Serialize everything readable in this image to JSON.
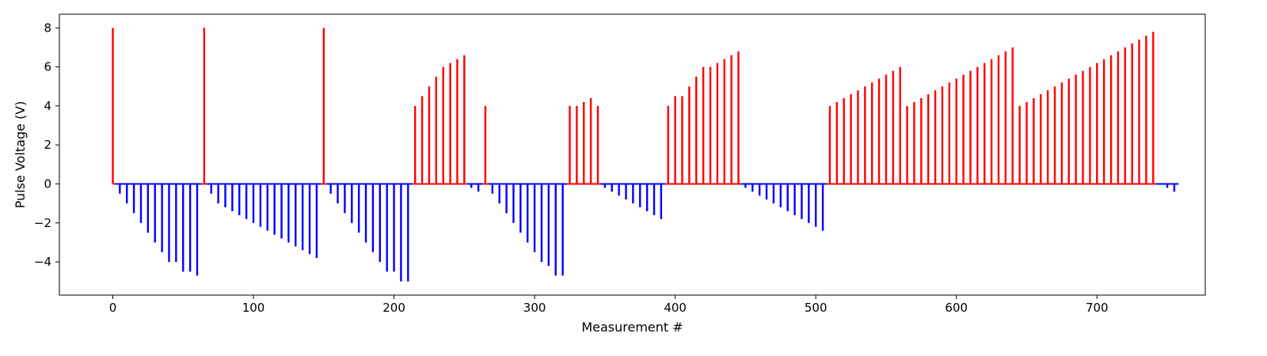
{
  "chart_data": {
    "type": "bar",
    "title": "",
    "xlabel": "Measurement #",
    "ylabel": "Pulse Voltage (V)",
    "xlim": [
      -38,
      777
    ],
    "ylim": [
      -5.7,
      8.7
    ],
    "xticks": [
      0,
      100,
      200,
      300,
      400,
      500,
      600,
      700
    ],
    "xtick_labels": [
      "0",
      "100",
      "200",
      "300",
      "400",
      "500",
      "600",
      "700"
    ],
    "yticks": [
      -4,
      -2,
      0,
      2,
      4,
      6,
      8
    ],
    "ytick_labels": [
      "−4",
      "−2",
      "0",
      "2",
      "4",
      "6",
      "8"
    ],
    "grid": false,
    "legend": "none",
    "colors": {
      "positive": "#ff0000",
      "negative": "#0000ff",
      "axis": "#000000"
    },
    "series": [
      {
        "color": "#ff0000",
        "x": [
          0,
          65,
          150,
          215,
          220,
          225,
          230,
          235,
          240,
          245,
          250,
          265,
          325,
          330,
          335,
          340,
          345,
          395,
          400,
          405,
          410,
          415,
          420,
          425,
          430,
          435,
          440,
          445,
          510,
          515,
          520,
          525,
          530,
          535,
          540,
          545,
          550,
          555,
          560,
          565,
          570,
          575,
          580,
          585,
          590,
          595,
          600,
          605,
          610,
          615,
          620,
          625,
          630,
          635,
          640,
          645,
          650,
          655,
          660,
          665,
          670,
          675,
          680,
          685,
          690,
          695,
          700,
          705,
          710,
          715,
          720,
          725,
          730,
          735,
          740
        ],
        "values": [
          8,
          8,
          8,
          4,
          4.5,
          5,
          5.5,
          6,
          6.2,
          6.4,
          6.6,
          4,
          4,
          4,
          4.2,
          4.4,
          4,
          4,
          4.5,
          4.5,
          5,
          5.5,
          6,
          6,
          6.2,
          6.4,
          6.6,
          6.8,
          4,
          4.2,
          4.4,
          4.6,
          4.8,
          5,
          5.2,
          5.4,
          5.6,
          5.8,
          6,
          4,
          4.2,
          4.4,
          4.6,
          4.8,
          5,
          5.2,
          5.4,
          5.6,
          5.8,
          6,
          6.2,
          6.4,
          6.6,
          6.8,
          7,
          4,
          4.2,
          4.4,
          4.6,
          4.8,
          5,
          5.2,
          5.4,
          5.6,
          5.8,
          6,
          6.2,
          6.4,
          6.6,
          6.8,
          7,
          7.2,
          7.4,
          7.6,
          7.8
        ]
      },
      {
        "color": "#0000ff",
        "x": [
          5,
          10,
          15,
          20,
          25,
          30,
          35,
          40,
          45,
          50,
          55,
          60,
          70,
          75,
          80,
          85,
          90,
          95,
          100,
          105,
          110,
          115,
          120,
          125,
          130,
          135,
          140,
          145,
          155,
          160,
          165,
          170,
          175,
          180,
          185,
          190,
          195,
          200,
          205,
          210,
          255,
          260,
          270,
          275,
          280,
          285,
          290,
          295,
          300,
          305,
          310,
          315,
          320,
          350,
          355,
          360,
          365,
          370,
          375,
          380,
          385,
          390,
          450,
          455,
          460,
          465,
          470,
          475,
          480,
          485,
          490,
          495,
          500,
          505,
          750,
          755
        ],
        "values": [
          -0.5,
          -1,
          -1.5,
          -2,
          -2.5,
          -3,
          -3.5,
          -4,
          -4,
          -4.5,
          -4.5,
          -4.7,
          -0.5,
          -1,
          -1.2,
          -1.4,
          -1.6,
          -1.8,
          -2,
          -2.2,
          -2.4,
          -2.6,
          -2.8,
          -3,
          -3.2,
          -3.4,
          -3.6,
          -3.8,
          -0.5,
          -1,
          -1.5,
          -2,
          -2.5,
          -3,
          -3.5,
          -4,
          -4.5,
          -4.5,
          -5,
          -5,
          -0.2,
          -0.4,
          -0.5,
          -1,
          -1.5,
          -2,
          -2.5,
          -3,
          -3.5,
          -4,
          -4.2,
          -4.7,
          -4.7,
          -0.2,
          -0.4,
          -0.6,
          -0.8,
          -1,
          -1.2,
          -1.4,
          -1.6,
          -1.8,
          -0.2,
          -0.4,
          -0.6,
          -0.8,
          -1,
          -1.2,
          -1.4,
          -1.6,
          -1.8,
          -2,
          -2.2,
          -2.4,
          -0.2,
          -0.4
        ]
      }
    ],
    "baseline_segments": [
      {
        "color": "#ff0000",
        "x": [
          0,
          2
        ]
      },
      {
        "color": "#0000ff",
        "x": [
          2,
          63
        ]
      },
      {
        "color": "#ff0000",
        "x": [
          63,
          67
        ]
      },
      {
        "color": "#0000ff",
        "x": [
          67,
          148
        ]
      },
      {
        "color": "#ff0000",
        "x": [
          148,
          152
        ]
      },
      {
        "color": "#0000ff",
        "x": [
          152,
          213
        ]
      },
      {
        "color": "#ff0000",
        "x": [
          213,
          252
        ]
      },
      {
        "color": "#0000ff",
        "x": [
          252,
          263
        ]
      },
      {
        "color": "#ff0000",
        "x": [
          263,
          267
        ]
      },
      {
        "color": "#0000ff",
        "x": [
          267,
          323
        ]
      },
      {
        "color": "#ff0000",
        "x": [
          323,
          347
        ]
      },
      {
        "color": "#0000ff",
        "x": [
          347,
          393
        ]
      },
      {
        "color": "#ff0000",
        "x": [
          393,
          447
        ]
      },
      {
        "color": "#0000ff",
        "x": [
          447,
          508
        ]
      },
      {
        "color": "#ff0000",
        "x": [
          508,
          742
        ]
      },
      {
        "color": "#0000ff",
        "x": [
          742,
          758
        ]
      }
    ]
  }
}
